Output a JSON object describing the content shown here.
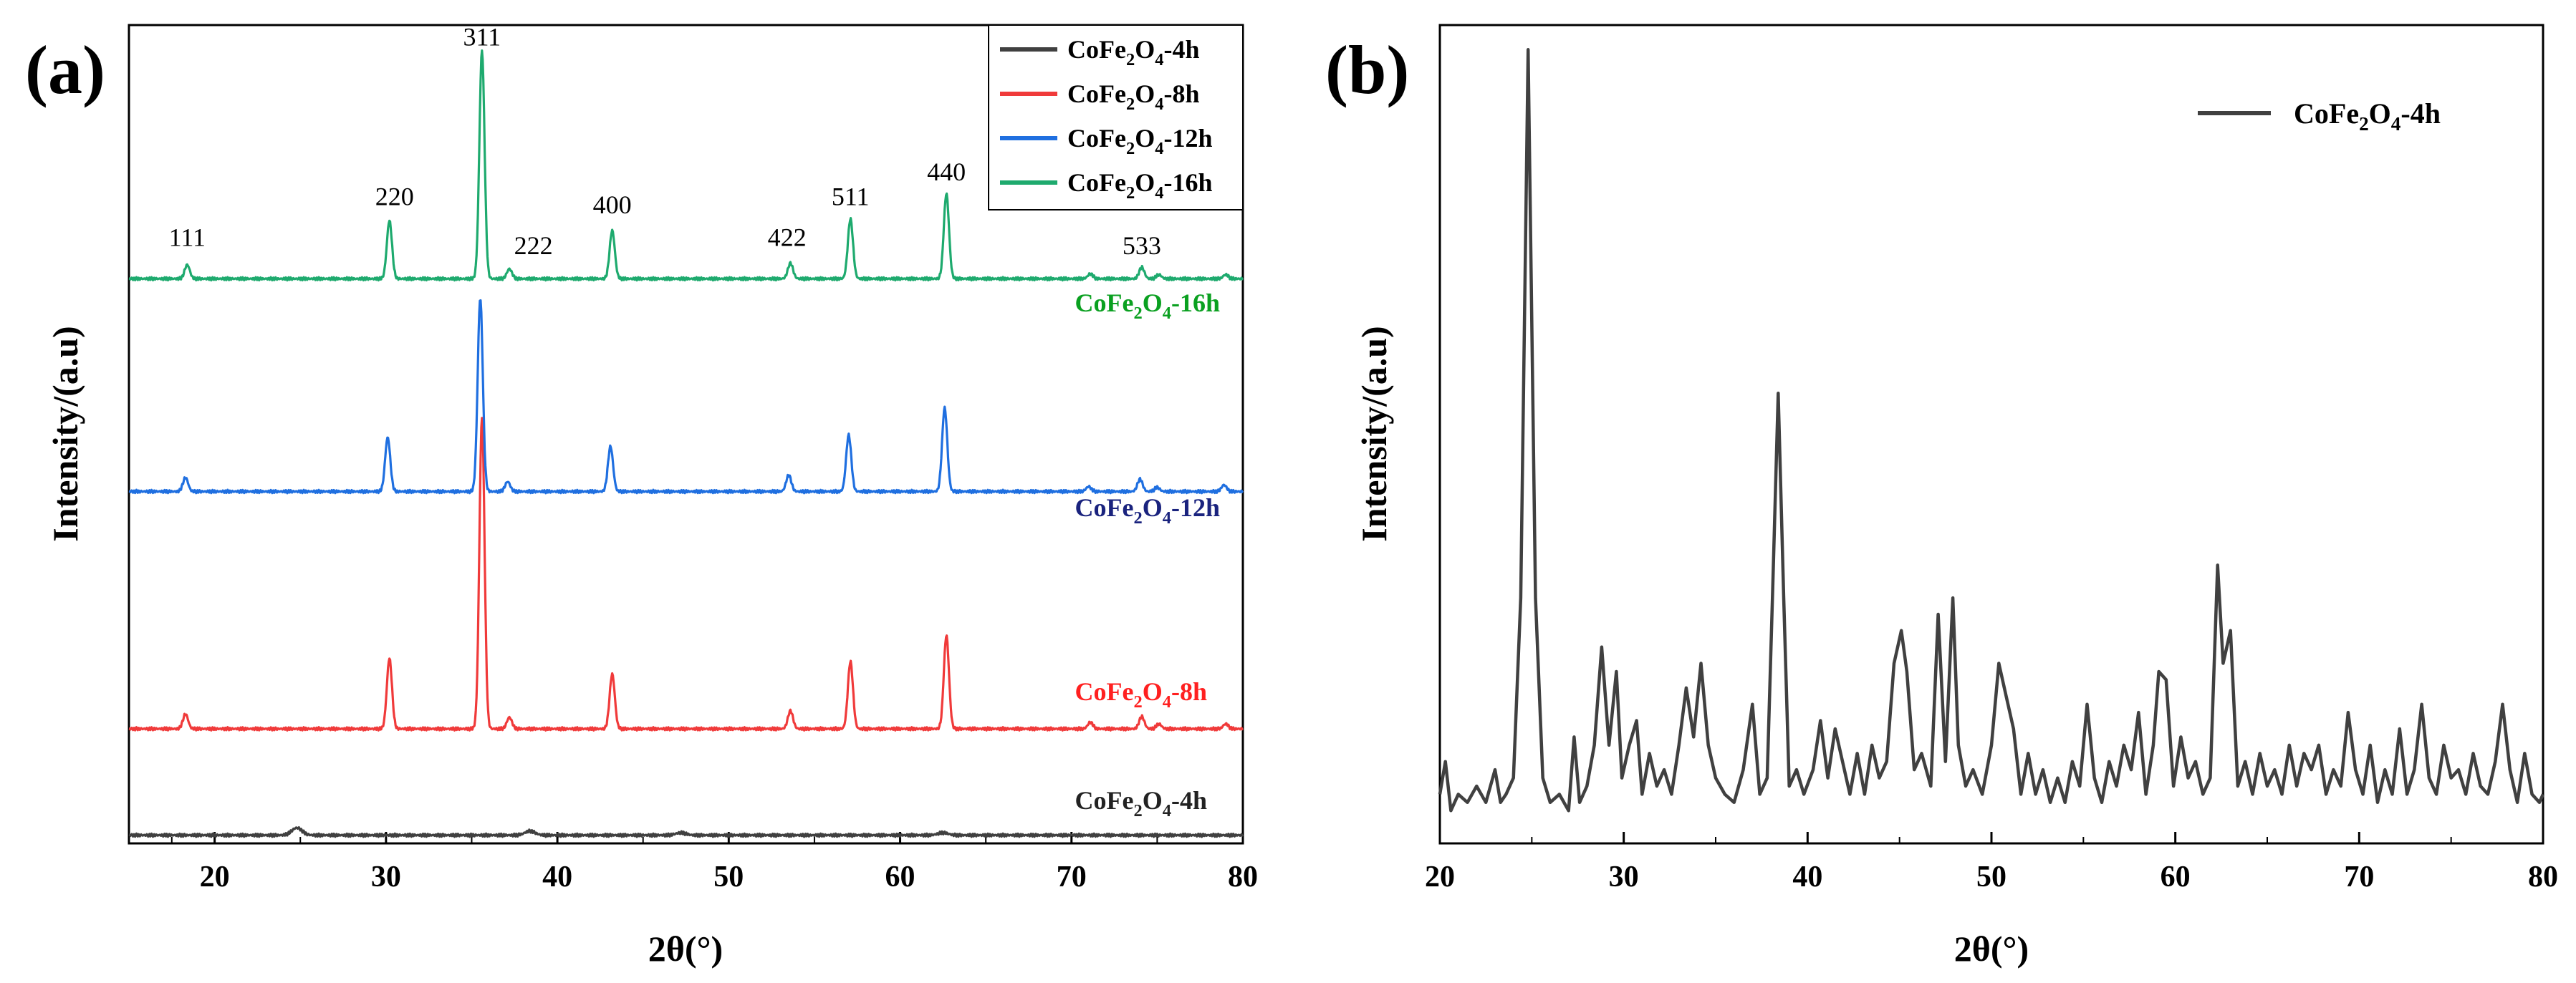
{
  "figure": {
    "background": "#ffffff",
    "axis_color": "#000000"
  },
  "chart_data": [
    {
      "panel_label": "(a)",
      "type": "line",
      "title": "",
      "xlabel": "2θ(°)",
      "ylabel": "Intensity/(a.u)",
      "xlim": [
        15,
        80
      ],
      "ylim": [
        0,
        10
      ],
      "xticks": [
        20,
        30,
        40,
        50,
        60,
        70,
        80
      ],
      "xtick_labels": [
        "20",
        "30",
        "40",
        "50",
        "60",
        "70",
        "80"
      ],
      "yticks_shown": false,
      "legend": {
        "placement": "top-right",
        "entries": [
          {
            "base": "CoFe",
            "sub1": "2",
            "mid": "O",
            "sub2": "4",
            "suffix": "-4h",
            "color": "#404040"
          },
          {
            "base": "CoFe",
            "sub1": "2",
            "mid": "O",
            "sub2": "4",
            "suffix": "-8h",
            "color": "#f03a3a"
          },
          {
            "base": "CoFe",
            "sub1": "2",
            "mid": "O",
            "sub2": "4",
            "suffix": "-12h",
            "color": "#1f6fe0"
          },
          {
            "base": "CoFe",
            "sub1": "2",
            "mid": "O",
            "sub2": "4",
            "suffix": "-16h",
            "color": "#1eaa6e"
          }
        ]
      },
      "series": [
        {
          "name": "CoFe2O4-4h",
          "color": "#404040",
          "label_color": "#222222",
          "baseline": 0.1,
          "label_at": {
            "x": 70.2,
            "y": 0.42
          },
          "peaks": [
            {
              "x": 24.8,
              "h": 0.09,
              "w": 0.3
            },
            {
              "x": 38.4,
              "h": 0.05,
              "w": 0.3
            },
            {
              "x": 47.2,
              "h": 0.03,
              "w": 0.3
            },
            {
              "x": 62.5,
              "h": 0.03,
              "w": 0.3
            }
          ]
        },
        {
          "name": "CoFe2O4-8h",
          "color": "#f03a3a",
          "label_color": "#ff2020",
          "baseline": 1.4,
          "label_at": {
            "x": 70.2,
            "y": 1.75
          },
          "peaks": [
            {
              "x": 18.3,
              "h": 0.18,
              "w": 0.15
            },
            {
              "x": 30.2,
              "h": 0.86,
              "w": 0.15
            },
            {
              "x": 35.6,
              "h": 3.8,
              "w": 0.15
            },
            {
              "x": 37.2,
              "h": 0.14,
              "w": 0.15
            },
            {
              "x": 43.2,
              "h": 0.67,
              "w": 0.15
            },
            {
              "x": 53.6,
              "h": 0.22,
              "w": 0.15
            },
            {
              "x": 57.1,
              "h": 0.82,
              "w": 0.15
            },
            {
              "x": 62.7,
              "h": 1.14,
              "w": 0.15
            },
            {
              "x": 71.1,
              "h": 0.08,
              "w": 0.15
            },
            {
              "x": 74.1,
              "h": 0.15,
              "w": 0.15
            },
            {
              "x": 75.1,
              "h": 0.06,
              "w": 0.15
            },
            {
              "x": 79.0,
              "h": 0.06,
              "w": 0.15
            }
          ]
        },
        {
          "name": "CoFe2O4-12h",
          "color": "#1f6fe0",
          "label_color": "#1a237e",
          "baseline": 4.3,
          "label_at": {
            "x": 70.2,
            "y": 4.0
          },
          "peaks": [
            {
              "x": 18.3,
              "h": 0.17,
              "w": 0.15
            },
            {
              "x": 30.1,
              "h": 0.66,
              "w": 0.15
            },
            {
              "x": 35.5,
              "h": 2.36,
              "w": 0.15
            },
            {
              "x": 37.1,
              "h": 0.12,
              "w": 0.15
            },
            {
              "x": 43.1,
              "h": 0.55,
              "w": 0.15
            },
            {
              "x": 53.5,
              "h": 0.2,
              "w": 0.15
            },
            {
              "x": 57.0,
              "h": 0.69,
              "w": 0.15
            },
            {
              "x": 62.6,
              "h": 1.02,
              "w": 0.15
            },
            {
              "x": 71.0,
              "h": 0.06,
              "w": 0.15
            },
            {
              "x": 74.0,
              "h": 0.15,
              "w": 0.15
            },
            {
              "x": 75.0,
              "h": 0.05,
              "w": 0.15
            },
            {
              "x": 78.9,
              "h": 0.08,
              "w": 0.15
            }
          ]
        },
        {
          "name": "CoFe2O4-16h",
          "color": "#1eaa6e",
          "label_color": "#0aa020",
          "baseline": 6.9,
          "label_at": {
            "x": 70.2,
            "y": 6.5
          },
          "peaks": [
            {
              "x": 18.4,
              "h": 0.17,
              "w": 0.15
            },
            {
              "x": 30.2,
              "h": 0.71,
              "w": 0.15
            },
            {
              "x": 35.6,
              "h": 2.79,
              "w": 0.15
            },
            {
              "x": 37.2,
              "h": 0.12,
              "w": 0.15
            },
            {
              "x": 43.2,
              "h": 0.59,
              "w": 0.15
            },
            {
              "x": 53.6,
              "h": 0.19,
              "w": 0.15
            },
            {
              "x": 57.1,
              "h": 0.73,
              "w": 0.15
            },
            {
              "x": 62.7,
              "h": 1.04,
              "w": 0.15
            },
            {
              "x": 71.1,
              "h": 0.06,
              "w": 0.15
            },
            {
              "x": 74.1,
              "h": 0.14,
              "w": 0.15
            },
            {
              "x": 75.1,
              "h": 0.05,
              "w": 0.15
            },
            {
              "x": 79.0,
              "h": 0.05,
              "w": 0.15
            }
          ]
        }
      ],
      "annotations": [
        {
          "text": "111",
          "x": 18.4,
          "y": 7.3
        },
        {
          "text": "220",
          "x": 30.5,
          "y": 7.8
        },
        {
          "text": "311",
          "x": 35.6,
          "y": 9.75
        },
        {
          "text": "222",
          "x": 38.6,
          "y": 7.2
        },
        {
          "text": "400",
          "x": 43.2,
          "y": 7.7
        },
        {
          "text": "422",
          "x": 53.4,
          "y": 7.3
        },
        {
          "text": "511",
          "x": 57.1,
          "y": 7.8
        },
        {
          "text": "440",
          "x": 62.7,
          "y": 8.1
        },
        {
          "text": "533",
          "x": 74.1,
          "y": 7.2
        }
      ]
    },
    {
      "panel_label": "(b)",
      "type": "line",
      "title": "",
      "xlabel": "2θ(°)",
      "ylabel": "Intensity/(a.u)",
      "xlim": [
        20,
        80
      ],
      "ylim": [
        0,
        1
      ],
      "xticks": [
        20,
        30,
        40,
        50,
        60,
        70,
        80
      ],
      "xtick_labels": [
        "20",
        "30",
        "40",
        "50",
        "60",
        "70",
        "80"
      ],
      "yticks_shown": false,
      "legend": {
        "placement": "top-right",
        "entries": [
          {
            "base": "CoFe",
            "sub1": "2",
            "mid": "O",
            "sub2": "4",
            "suffix": "-4h",
            "color": "#404040"
          }
        ]
      },
      "series": [
        {
          "name": "CoFe2O4-4h",
          "color": "#404040",
          "x": [
            20.0,
            20.3,
            20.6,
            21.0,
            21.5,
            22.0,
            22.5,
            23.0,
            23.3,
            23.6,
            24.0,
            24.4,
            24.8,
            25.2,
            25.6,
            26.0,
            26.5,
            27.0,
            27.3,
            27.6,
            28.0,
            28.4,
            28.8,
            29.2,
            29.6,
            29.9,
            30.3,
            30.7,
            31.0,
            31.4,
            31.8,
            32.2,
            32.6,
            33.0,
            33.4,
            33.8,
            34.2,
            34.6,
            35.0,
            35.5,
            36.0,
            36.5,
            37.0,
            37.4,
            37.8,
            38.1,
            38.4,
            38.7,
            39.0,
            39.4,
            39.8,
            40.3,
            40.7,
            41.1,
            41.5,
            41.9,
            42.3,
            42.7,
            43.1,
            43.5,
            43.9,
            44.3,
            44.7,
            45.1,
            45.4,
            45.8,
            46.2,
            46.7,
            47.1,
            47.5,
            47.9,
            48.2,
            48.6,
            49.0,
            49.5,
            50.0,
            50.4,
            50.8,
            51.2,
            51.6,
            52.0,
            52.4,
            52.8,
            53.2,
            53.6,
            54.0,
            54.4,
            54.8,
            55.2,
            55.6,
            56.0,
            56.4,
            56.8,
            57.2,
            57.6,
            58.0,
            58.4,
            58.8,
            59.1,
            59.5,
            59.9,
            60.3,
            60.7,
            61.1,
            61.5,
            61.9,
            62.3,
            62.6,
            63.0,
            63.4,
            63.8,
            64.2,
            64.6,
            65.0,
            65.4,
            65.8,
            66.2,
            66.6,
            67.0,
            67.4,
            67.8,
            68.2,
            68.6,
            69.0,
            69.4,
            69.8,
            70.2,
            70.6,
            71.0,
            71.4,
            71.8,
            72.2,
            72.6,
            73.0,
            73.4,
            73.8,
            74.2,
            74.6,
            75.0,
            75.4,
            75.8,
            76.2,
            76.6,
            77.0,
            77.4,
            77.8,
            78.2,
            78.6,
            79.0,
            79.4,
            79.8,
            80.0
          ],
          "y": [
            0.06,
            0.1,
            0.04,
            0.06,
            0.05,
            0.07,
            0.05,
            0.09,
            0.05,
            0.06,
            0.08,
            0.3,
            0.97,
            0.3,
            0.08,
            0.05,
            0.06,
            0.04,
            0.13,
            0.05,
            0.07,
            0.12,
            0.24,
            0.12,
            0.21,
            0.08,
            0.12,
            0.15,
            0.06,
            0.11,
            0.07,
            0.09,
            0.06,
            0.12,
            0.19,
            0.13,
            0.22,
            0.12,
            0.08,
            0.06,
            0.05,
            0.09,
            0.17,
            0.06,
            0.08,
            0.31,
            0.55,
            0.3,
            0.07,
            0.09,
            0.06,
            0.09,
            0.15,
            0.08,
            0.14,
            0.1,
            0.06,
            0.11,
            0.06,
            0.12,
            0.08,
            0.1,
            0.22,
            0.26,
            0.21,
            0.09,
            0.11,
            0.07,
            0.28,
            0.1,
            0.3,
            0.12,
            0.07,
            0.09,
            0.06,
            0.12,
            0.22,
            0.18,
            0.14,
            0.06,
            0.11,
            0.06,
            0.09,
            0.05,
            0.08,
            0.05,
            0.1,
            0.07,
            0.17,
            0.08,
            0.05,
            0.1,
            0.07,
            0.12,
            0.09,
            0.16,
            0.06,
            0.12,
            0.21,
            0.2,
            0.07,
            0.13,
            0.08,
            0.1,
            0.06,
            0.08,
            0.34,
            0.22,
            0.26,
            0.07,
            0.1,
            0.06,
            0.11,
            0.07,
            0.09,
            0.06,
            0.12,
            0.07,
            0.11,
            0.09,
            0.12,
            0.06,
            0.09,
            0.07,
            0.16,
            0.09,
            0.06,
            0.12,
            0.05,
            0.09,
            0.06,
            0.14,
            0.06,
            0.09,
            0.17,
            0.08,
            0.06,
            0.12,
            0.08,
            0.09,
            0.06,
            0.11,
            0.07,
            0.06,
            0.1,
            0.17,
            0.09,
            0.05,
            0.11,
            0.06,
            0.05,
            0.06
          ]
        }
      ],
      "annotations": []
    }
  ]
}
